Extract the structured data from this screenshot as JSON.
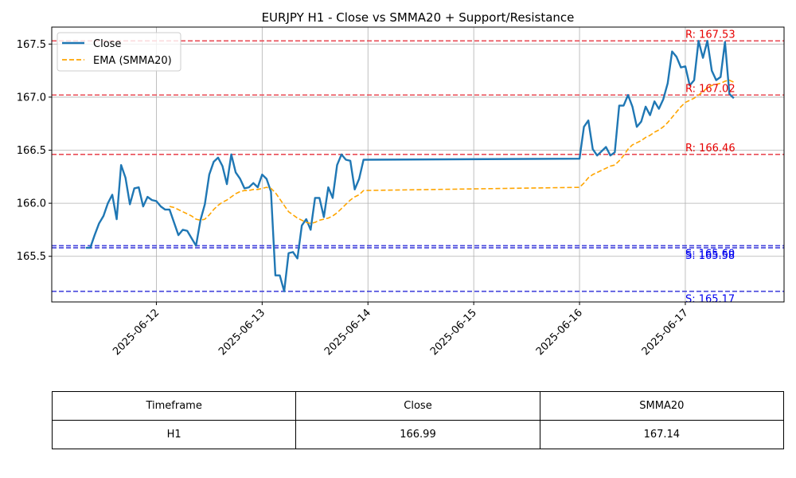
{
  "chart_data": {
    "type": "line",
    "title": "EURJPY H1 - Close vs SMMA20 + Support/Resistance",
    "xlabel": "",
    "ylabel": "",
    "x_ticks": [
      "2025-06-12",
      "2025-06-13",
      "2025-06-14",
      "2025-06-15",
      "2025-06-16",
      "2025-06-17"
    ],
    "y_ticks": [
      "165.5",
      "166.0",
      "166.5",
      "167.0",
      "167.5"
    ],
    "xlim": [
      "2025-06-11 00:16",
      "2025-06-17 22:24"
    ],
    "ylim": [
      165.07,
      167.66
    ],
    "grid": true,
    "legend_position": "top-left",
    "series": [
      {
        "name": "Close",
        "color": "#1f77b4",
        "style": "solid",
        "points": [
          [
            "2025-06-11 08:00",
            165.58
          ],
          [
            "2025-06-11 09:00",
            165.58
          ],
          [
            "2025-06-11 10:00",
            165.7
          ],
          [
            "2025-06-11 11:00",
            165.81
          ],
          [
            "2025-06-11 12:00",
            165.88
          ],
          [
            "2025-06-11 13:00",
            166.0
          ],
          [
            "2025-06-11 14:00",
            166.08
          ],
          [
            "2025-06-11 15:00",
            165.85
          ],
          [
            "2025-06-11 16:00",
            166.36
          ],
          [
            "2025-06-11 17:00",
            166.24
          ],
          [
            "2025-06-11 18:00",
            165.99
          ],
          [
            "2025-06-11 19:00",
            166.14
          ],
          [
            "2025-06-11 20:00",
            166.15
          ],
          [
            "2025-06-11 21:00",
            165.97
          ],
          [
            "2025-06-11 22:00",
            166.06
          ],
          [
            "2025-06-11 23:00",
            166.03
          ],
          [
            "2025-06-12 00:00",
            166.02
          ],
          [
            "2025-06-12 01:00",
            165.97
          ],
          [
            "2025-06-12 02:00",
            165.94
          ],
          [
            "2025-06-12 03:00",
            165.94
          ],
          [
            "2025-06-12 04:00",
            165.82
          ],
          [
            "2025-06-12 05:00",
            165.7
          ],
          [
            "2025-06-12 06:00",
            165.75
          ],
          [
            "2025-06-12 07:00",
            165.74
          ],
          [
            "2025-06-12 08:00",
            165.67
          ],
          [
            "2025-06-12 09:00",
            165.6
          ],
          [
            "2025-06-12 10:00",
            165.84
          ],
          [
            "2025-06-12 11:00",
            165.99
          ],
          [
            "2025-06-12 12:00",
            166.27
          ],
          [
            "2025-06-12 13:00",
            166.39
          ],
          [
            "2025-06-12 14:00",
            166.43
          ],
          [
            "2025-06-12 15:00",
            166.35
          ],
          [
            "2025-06-12 16:00",
            166.18
          ],
          [
            "2025-06-12 17:00",
            166.46
          ],
          [
            "2025-06-12 18:00",
            166.29
          ],
          [
            "2025-06-12 19:00",
            166.23
          ],
          [
            "2025-06-12 20:00",
            166.14
          ],
          [
            "2025-06-12 21:00",
            166.15
          ],
          [
            "2025-06-12 22:00",
            166.19
          ],
          [
            "2025-06-12 23:00",
            166.15
          ],
          [
            "2025-06-13 00:00",
            166.27
          ],
          [
            "2025-06-13 01:00",
            166.23
          ],
          [
            "2025-06-13 02:00",
            166.11
          ],
          [
            "2025-06-13 03:00",
            165.32
          ],
          [
            "2025-06-13 04:00",
            165.32
          ],
          [
            "2025-06-13 05:00",
            165.17
          ],
          [
            "2025-06-13 06:00",
            165.53
          ],
          [
            "2025-06-13 07:00",
            165.54
          ],
          [
            "2025-06-13 08:00",
            165.48
          ],
          [
            "2025-06-13 09:00",
            165.79
          ],
          [
            "2025-06-13 10:00",
            165.85
          ],
          [
            "2025-06-13 11:00",
            165.75
          ],
          [
            "2025-06-13 12:00",
            166.05
          ],
          [
            "2025-06-13 13:00",
            166.05
          ],
          [
            "2025-06-13 14:00",
            165.87
          ],
          [
            "2025-06-13 15:00",
            166.15
          ],
          [
            "2025-06-13 16:00",
            166.05
          ],
          [
            "2025-06-13 17:00",
            166.36
          ],
          [
            "2025-06-13 18:00",
            166.46
          ],
          [
            "2025-06-13 19:00",
            166.41
          ],
          [
            "2025-06-13 20:00",
            166.4
          ],
          [
            "2025-06-13 21:00",
            166.13
          ],
          [
            "2025-06-13 22:00",
            166.23
          ],
          [
            "2025-06-13 23:00",
            166.41
          ],
          [
            "2025-06-16 00:00",
            166.42
          ],
          [
            "2025-06-16 01:00",
            166.72
          ],
          [
            "2025-06-16 02:00",
            166.78
          ],
          [
            "2025-06-16 03:00",
            166.51
          ],
          [
            "2025-06-16 04:00",
            166.45
          ],
          [
            "2025-06-16 05:00",
            166.49
          ],
          [
            "2025-06-16 06:00",
            166.53
          ],
          [
            "2025-06-16 07:00",
            166.45
          ],
          [
            "2025-06-16 08:00",
            166.48
          ],
          [
            "2025-06-16 09:00",
            166.92
          ],
          [
            "2025-06-16 10:00",
            166.92
          ],
          [
            "2025-06-16 11:00",
            167.02
          ],
          [
            "2025-06-16 12:00",
            166.91
          ],
          [
            "2025-06-16 13:00",
            166.72
          ],
          [
            "2025-06-16 14:00",
            166.77
          ],
          [
            "2025-06-16 15:00",
            166.91
          ],
          [
            "2025-06-16 16:00",
            166.83
          ],
          [
            "2025-06-16 17:00",
            166.96
          ],
          [
            "2025-06-16 18:00",
            166.89
          ],
          [
            "2025-06-16 19:00",
            166.98
          ],
          [
            "2025-06-16 20:00",
            167.13
          ],
          [
            "2025-06-16 21:00",
            167.43
          ],
          [
            "2025-06-16 22:00",
            167.38
          ],
          [
            "2025-06-16 23:00",
            167.28
          ],
          [
            "2025-06-17 00:00",
            167.29
          ],
          [
            "2025-06-17 01:00",
            167.11
          ],
          [
            "2025-06-17 02:00",
            167.16
          ],
          [
            "2025-06-17 03:00",
            167.53
          ],
          [
            "2025-06-17 04:00",
            167.37
          ],
          [
            "2025-06-17 05:00",
            167.53
          ],
          [
            "2025-06-17 06:00",
            167.25
          ],
          [
            "2025-06-17 07:00",
            167.16
          ],
          [
            "2025-06-17 08:00",
            167.19
          ],
          [
            "2025-06-17 09:00",
            167.52
          ],
          [
            "2025-06-17 10:00",
            167.03
          ],
          [
            "2025-06-17 11:00",
            166.99
          ]
        ]
      },
      {
        "name": "EMA (SMMA20)",
        "color": "#ffa500",
        "style": "dashed",
        "points": [
          [
            "2025-06-12 03:00",
            165.97
          ],
          [
            "2025-06-12 04:00",
            165.96
          ],
          [
            "2025-06-12 05:00",
            165.94
          ],
          [
            "2025-06-12 06:00",
            165.92
          ],
          [
            "2025-06-12 07:00",
            165.9
          ],
          [
            "2025-06-12 08:00",
            165.88
          ],
          [
            "2025-06-12 09:00",
            165.85
          ],
          [
            "2025-06-12 10:00",
            165.84
          ],
          [
            "2025-06-12 11:00",
            165.85
          ],
          [
            "2025-06-12 12:00",
            165.89
          ],
          [
            "2025-06-12 13:00",
            165.94
          ],
          [
            "2025-06-12 14:00",
            165.98
          ],
          [
            "2025-06-12 15:00",
            166.01
          ],
          [
            "2025-06-12 16:00",
            166.03
          ],
          [
            "2025-06-12 17:00",
            166.06
          ],
          [
            "2025-06-12 18:00",
            166.09
          ],
          [
            "2025-06-12 19:00",
            166.11
          ],
          [
            "2025-06-12 20:00",
            166.12
          ],
          [
            "2025-06-12 21:00",
            166.12
          ],
          [
            "2025-06-12 22:00",
            166.13
          ],
          [
            "2025-06-12 23:00",
            166.13
          ],
          [
            "2025-06-13 00:00",
            166.14
          ],
          [
            "2025-06-13 01:00",
            166.15
          ],
          [
            "2025-06-13 02:00",
            166.14
          ],
          [
            "2025-06-13 03:00",
            166.1
          ],
          [
            "2025-06-13 04:00",
            166.04
          ],
          [
            "2025-06-13 05:00",
            165.98
          ],
          [
            "2025-06-13 06:00",
            165.92
          ],
          [
            "2025-06-13 07:00",
            165.89
          ],
          [
            "2025-06-13 08:00",
            165.86
          ],
          [
            "2025-06-13 09:00",
            165.84
          ],
          [
            "2025-06-13 10:00",
            165.82
          ],
          [
            "2025-06-13 11:00",
            165.81
          ],
          [
            "2025-06-13 12:00",
            165.82
          ],
          [
            "2025-06-13 13:00",
            165.84
          ],
          [
            "2025-06-13 14:00",
            165.85
          ],
          [
            "2025-06-13 15:00",
            165.86
          ],
          [
            "2025-06-13 16:00",
            165.88
          ],
          [
            "2025-06-13 17:00",
            165.91
          ],
          [
            "2025-06-13 18:00",
            165.95
          ],
          [
            "2025-06-13 19:00",
            165.99
          ],
          [
            "2025-06-13 20:00",
            166.03
          ],
          [
            "2025-06-13 21:00",
            166.06
          ],
          [
            "2025-06-13 22:00",
            166.08
          ],
          [
            "2025-06-13 23:00",
            166.12
          ],
          [
            "2025-06-16 00:00",
            166.15
          ],
          [
            "2025-06-16 01:00",
            166.19
          ],
          [
            "2025-06-16 02:00",
            166.24
          ],
          [
            "2025-06-16 03:00",
            166.27
          ],
          [
            "2025-06-16 04:00",
            166.29
          ],
          [
            "2025-06-16 05:00",
            166.31
          ],
          [
            "2025-06-16 06:00",
            166.33
          ],
          [
            "2025-06-16 07:00",
            166.35
          ],
          [
            "2025-06-16 08:00",
            166.36
          ],
          [
            "2025-06-16 09:00",
            166.4
          ],
          [
            "2025-06-16 10:00",
            166.45
          ],
          [
            "2025-06-16 11:00",
            166.51
          ],
          [
            "2025-06-16 12:00",
            166.55
          ],
          [
            "2025-06-16 13:00",
            166.57
          ],
          [
            "2025-06-16 14:00",
            166.59
          ],
          [
            "2025-06-16 15:00",
            166.62
          ],
          [
            "2025-06-16 16:00",
            166.64
          ],
          [
            "2025-06-16 17:00",
            166.67
          ],
          [
            "2025-06-16 18:00",
            166.69
          ],
          [
            "2025-06-16 19:00",
            166.72
          ],
          [
            "2025-06-16 20:00",
            166.76
          ],
          [
            "2025-06-16 21:00",
            166.81
          ],
          [
            "2025-06-16 22:00",
            166.86
          ],
          [
            "2025-06-16 23:00",
            166.91
          ],
          [
            "2025-06-17 00:00",
            166.95
          ],
          [
            "2025-06-17 01:00",
            166.97
          ],
          [
            "2025-06-17 02:00",
            166.99
          ],
          [
            "2025-06-17 03:00",
            167.02
          ],
          [
            "2025-06-17 04:00",
            167.05
          ],
          [
            "2025-06-17 05:00",
            167.09
          ],
          [
            "2025-06-17 06:00",
            167.11
          ],
          [
            "2025-06-17 07:00",
            167.12
          ],
          [
            "2025-06-17 08:00",
            167.13
          ],
          [
            "2025-06-17 09:00",
            167.15
          ],
          [
            "2025-06-17 10:00",
            167.16
          ],
          [
            "2025-06-17 11:00",
            167.14
          ]
        ]
      }
    ],
    "hlines": [
      {
        "kind": "resistance",
        "value": 167.53,
        "label": "R: 167.53",
        "color": "#e8434d"
      },
      {
        "kind": "resistance",
        "value": 167.02,
        "label": "R: 167.02",
        "color": "#e8434d"
      },
      {
        "kind": "resistance",
        "value": 166.46,
        "label": "R: 166.46",
        "color": "#e8434d"
      },
      {
        "kind": "support",
        "value": 165.6,
        "label": "S: 165.60",
        "color": "#3b3bdb"
      },
      {
        "kind": "support",
        "value": 165.58,
        "label": "S: 165.58",
        "color": "#3b3bdb"
      },
      {
        "kind": "support",
        "value": 165.17,
        "label": "S: 165.17",
        "color": "#3b3bdb"
      }
    ]
  },
  "table": {
    "headers": [
      "Timeframe",
      "Close",
      "SMMA20"
    ],
    "rows": [
      [
        "H1",
        "166.99",
        "167.14"
      ]
    ]
  }
}
